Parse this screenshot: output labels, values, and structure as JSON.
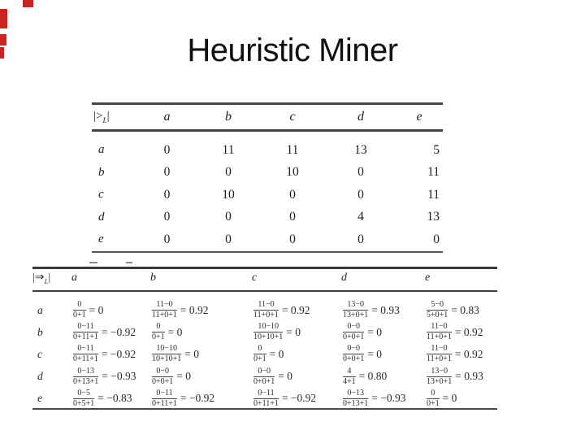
{
  "colors": {
    "slide_background": "#ffffff",
    "ink": "#2b2b2b",
    "artifact_red": "#cc2222"
  },
  "slide": {
    "title": "Heuristic Miner"
  },
  "table1": {
    "corner": {
      "pre": "|>",
      "sub": "L",
      "post": "|"
    },
    "columns": [
      "a",
      "b",
      "c",
      "d",
      "e"
    ],
    "rows": [
      {
        "label": "a",
        "values": [
          "0",
          "11",
          "11",
          "13",
          "5"
        ]
      },
      {
        "label": "b",
        "values": [
          "0",
          "0",
          "10",
          "0",
          "11"
        ]
      },
      {
        "label": "c",
        "values": [
          "0",
          "10",
          "0",
          "0",
          "11"
        ]
      },
      {
        "label": "d",
        "values": [
          "0",
          "0",
          "0",
          "4",
          "13"
        ]
      },
      {
        "label": "e",
        "values": [
          "0",
          "0",
          "0",
          "0",
          "0"
        ]
      }
    ]
  },
  "table2": {
    "corner": {
      "pre": "|⇒",
      "sub": "L",
      "post": "|"
    },
    "columns": [
      "a",
      "b",
      "c",
      "d",
      "e"
    ],
    "rows": [
      {
        "label": "a",
        "cells": [
          {
            "num": "0",
            "den": "0+1",
            "eq": "= 0"
          },
          {
            "num": "11−0",
            "den": "11+0+1",
            "eq": "= 0.92"
          },
          {
            "num": "11−0",
            "den": "11+0+1",
            "eq": "= 0.92"
          },
          {
            "num": "13−0",
            "den": "13+0+1",
            "eq": "= 0.93"
          },
          {
            "num": "5−0",
            "den": "5+0+1",
            "eq": "= 0.83"
          }
        ]
      },
      {
        "label": "b",
        "cells": [
          {
            "num": "0−11",
            "den": "0+11+1",
            "eq": "= −0.92"
          },
          {
            "num": "0",
            "den": "0+1",
            "eq": "= 0"
          },
          {
            "num": "10−10",
            "den": "10+10+1",
            "eq": "= 0"
          },
          {
            "num": "0−0",
            "den": "0+0+1",
            "eq": "= 0"
          },
          {
            "num": "11−0",
            "den": "11+0+1",
            "eq": "= 0.92"
          }
        ]
      },
      {
        "label": "c",
        "cells": [
          {
            "num": "0−11",
            "den": "0+11+1",
            "eq": "= −0.92"
          },
          {
            "num": "10−10",
            "den": "10+10+1",
            "eq": "= 0"
          },
          {
            "num": "0",
            "den": "0+1",
            "eq": "= 0"
          },
          {
            "num": "0−0",
            "den": "0+0+1",
            "eq": "= 0"
          },
          {
            "num": "11−0",
            "den": "11+0+1",
            "eq": "= 0.92"
          }
        ]
      },
      {
        "label": "d",
        "cells": [
          {
            "num": "0−13",
            "den": "0+13+1",
            "eq": "= −0.93"
          },
          {
            "num": "0−0",
            "den": "0+0+1",
            "eq": "= 0"
          },
          {
            "num": "0−0",
            "den": "0+0+1",
            "eq": "= 0"
          },
          {
            "num": "4",
            "den": "4+1",
            "eq": "= 0.80"
          },
          {
            "num": "13−0",
            "den": "13+0+1",
            "eq": "= 0.93"
          }
        ]
      },
      {
        "label": "e",
        "cells": [
          {
            "num": "0−5",
            "den": "0+5+1",
            "eq": "= −0.83"
          },
          {
            "num": "0−11",
            "den": "0+11+1",
            "eq": "= −0.92"
          },
          {
            "num": "0−11",
            "den": "0+11+1",
            "eq": "= −0.92"
          },
          {
            "num": "0−13",
            "den": "0+13+1",
            "eq": "= −0.93"
          },
          {
            "num": "0",
            "den": "0+1",
            "eq": "= 0"
          }
        ]
      }
    ]
  }
}
